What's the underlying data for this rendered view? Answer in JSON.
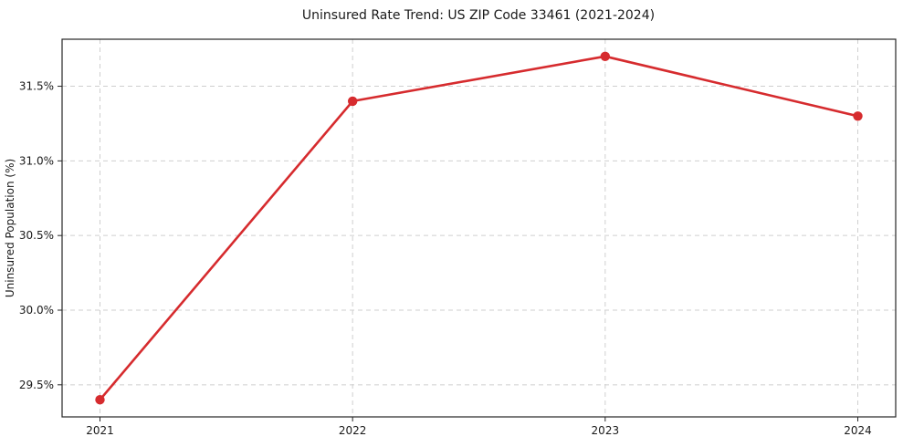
{
  "chart_data": {
    "type": "line",
    "title": "Uninsured Rate Trend: US ZIP Code 33461 (2021-2024)",
    "xlabel": "",
    "ylabel": "Uninsured Population (%)",
    "x": [
      2021,
      2022,
      2023,
      2024
    ],
    "series": [
      {
        "name": "Uninsured rate",
        "values": [
          29.4,
          31.4,
          31.7,
          31.3
        ]
      }
    ],
    "xlim": [
      2020.85,
      2024.15
    ],
    "ylim": [
      29.285,
      31.815
    ],
    "xticks": [
      2021,
      2022,
      2023,
      2024
    ],
    "xtick_labels": [
      "2021",
      "2022",
      "2023",
      "2024"
    ],
    "yticks": [
      29.5,
      30.0,
      30.5,
      31.0,
      31.5
    ],
    "ytick_labels": [
      "29.5%",
      "30.0%",
      "30.5%",
      "31.0%",
      "31.5%"
    ],
    "grid": true,
    "grid_style": "dashed",
    "legend": "none",
    "colors": {
      "line": "#d62b2e",
      "marker": "#d62b2e",
      "grid": "#cfcfcf",
      "axis": "#262626",
      "text": "#1a1a1a",
      "background": "#ffffff"
    }
  }
}
